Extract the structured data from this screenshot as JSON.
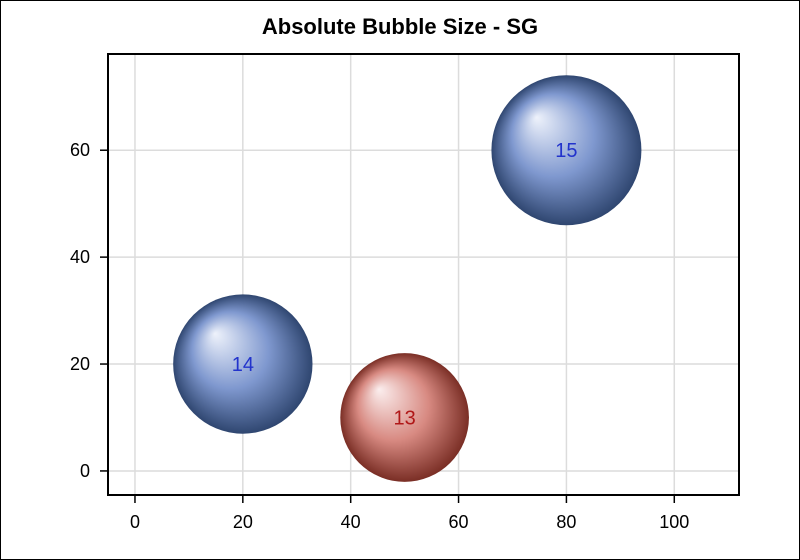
{
  "chart_data": {
    "type": "scatter",
    "title": "Absolute Bubble Size - SG",
    "xlabel": "",
    "ylabel": "",
    "xlim": [
      -5,
      112
    ],
    "ylim": [
      -4.5,
      78
    ],
    "x_ticks": [
      0,
      20,
      40,
      60,
      80,
      100
    ],
    "y_ticks": [
      0,
      20,
      40,
      60
    ],
    "grid": true,
    "bubbles": [
      {
        "x": 20,
        "y": 20,
        "size": 14,
        "label": "14",
        "color": "blue"
      },
      {
        "x": 50,
        "y": 10,
        "size": 13,
        "label": "13",
        "color": "red"
      },
      {
        "x": 80,
        "y": 60,
        "size": 15,
        "label": "15",
        "color": "blue"
      }
    ]
  },
  "colors": {
    "blue_highlight": "#eef2fb",
    "blue_mid": "#7f98cf",
    "blue_dark": "#2f4670",
    "blue_label": "#2233cc",
    "red_highlight": "#fbeeee",
    "red_mid": "#d88a82",
    "red_dark": "#7a2e25",
    "red_label": "#b01818",
    "grid": "#dcdcdc"
  }
}
